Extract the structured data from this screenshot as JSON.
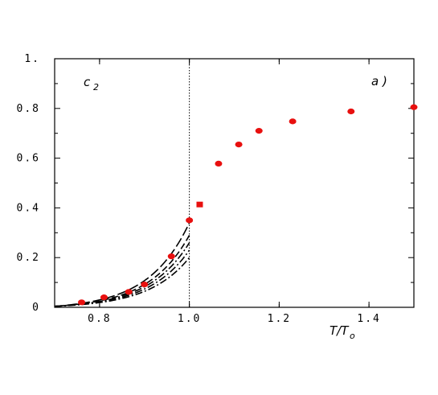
{
  "chart_data": {
    "type": "scatter",
    "title": "",
    "xlabel": "T/T",
    "xlabel_sub": "o",
    "ylabel": "c",
    "ylabel_sub": "2",
    "panel_label": "a )",
    "xlim": [
      0.7,
      1.5
    ],
    "ylim": [
      0,
      1.0
    ],
    "x_ticks": [
      0.8,
      1.0,
      1.2,
      1.4
    ],
    "x_tick_labels": [
      "0.8",
      "1.0",
      "1.2",
      "1.4"
    ],
    "y_ticks": [
      0,
      0.2,
      0.4,
      0.6,
      0.8,
      1.0
    ],
    "y_tick_labels": [
      "0",
      "0.2",
      "0.4",
      "0.6",
      "0.8",
      "1."
    ],
    "reference_line_x": 1.0,
    "grid": false,
    "marker_color": "#e8100f",
    "series": [
      {
        "marker": "circle",
        "x": [
          0.76,
          0.81,
          0.865,
          0.9,
          0.96,
          1.0,
          1.065,
          1.11,
          1.155,
          1.23,
          1.36,
          1.5
        ],
        "y": [
          0.02,
          0.04,
          0.062,
          0.092,
          0.205,
          0.35,
          0.578,
          0.655,
          0.71,
          0.748,
          0.788,
          0.805
        ]
      },
      {
        "marker": "square",
        "x": [
          1.023
        ],
        "y": [
          0.412
        ]
      }
    ],
    "curves": [
      {
        "style": "long-dash",
        "end_y": 0.34
      },
      {
        "style": "dash",
        "end_y": 0.29
      },
      {
        "style": "dash-dot",
        "end_y": 0.26
      },
      {
        "style": "dash-dot",
        "end_y": 0.23
      },
      {
        "style": "dash-dot",
        "end_y": 0.2
      }
    ]
  }
}
